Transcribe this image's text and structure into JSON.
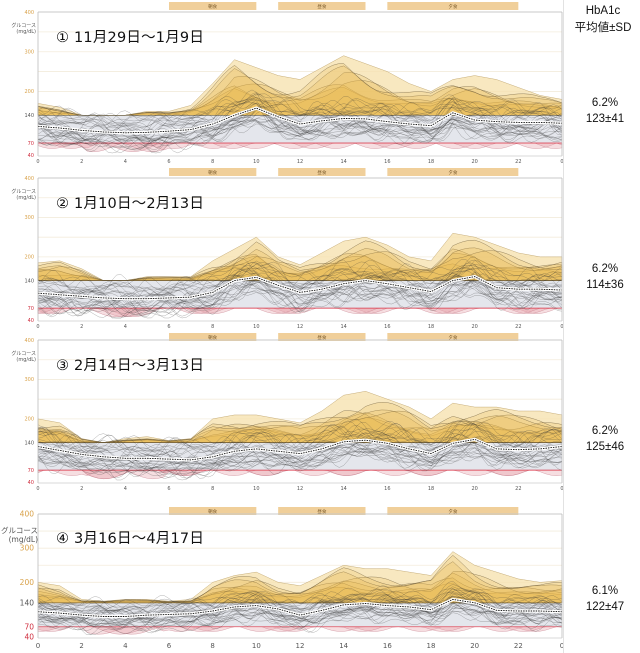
{
  "header": {
    "line1": "HbA1c",
    "line2": "平均値±SD"
  },
  "axis": {
    "ylabel_line1": "グルコース",
    "ylabel_line2": "(mg/dL)",
    "yticks": [
      40,
      70,
      140,
      200,
      300,
      400
    ],
    "xticks": [
      "0",
      "2",
      "4",
      "6",
      "8",
      "10",
      "12",
      "14",
      "16",
      "18",
      "20",
      "22",
      "0"
    ]
  },
  "meals": [
    {
      "label": "朝食",
      "start": 6,
      "end": 10
    },
    {
      "label": "昼食",
      "start": 11,
      "end": 15
    },
    {
      "label": "夕食",
      "start": 16,
      "end": 22
    }
  ],
  "colors": {
    "target_band": "#e4e6ec",
    "high_fill": "#e8b84a",
    "high_fill_light": "#f6e2b0",
    "low_fill": "#e6a0a8",
    "low_line": "#e05060",
    "meal_bar": "#f0cf9a",
    "trace": "#333333",
    "tick_high": "#d9a24a",
    "tick_low": "#d03040"
  },
  "panels": [
    {
      "title": "① 11月29日～1月9日",
      "hba1c": "6.2%",
      "mean_sd": "123±41"
    },
    {
      "title": "② 1月10日～2月13日",
      "hba1c": "6.2%",
      "mean_sd": "114±36"
    },
    {
      "title": "③ 2月14日～3月13日",
      "hba1c": "6.2%",
      "mean_sd": "125±46"
    },
    {
      "title": "④ 3月16日～4月17日",
      "hba1c": "6.1%",
      "mean_sd": "122±47"
    }
  ],
  "chart_data": [
    {
      "type": "line",
      "title": "① 11月29日～1月9日",
      "xlabel": "",
      "ylabel": "グルコース (mg/dL)",
      "xlim": [
        0,
        24
      ],
      "ylim": [
        40,
        400
      ],
      "target_range": [
        70,
        140
      ],
      "x": [
        0,
        1,
        2,
        3,
        4,
        5,
        6,
        7,
        8,
        9,
        10,
        11,
        12,
        13,
        14,
        15,
        16,
        17,
        18,
        19,
        20,
        21,
        22,
        23,
        24
      ],
      "series": [
        {
          "name": "median",
          "values": [
            112,
            108,
            102,
            98,
            96,
            97,
            100,
            104,
            118,
            140,
            158,
            136,
            118,
            126,
            132,
            131,
            124,
            118,
            114,
            146,
            128,
            124,
            122,
            122,
            120
          ]
        },
        {
          "name": "upper_envelope",
          "values": [
            170,
            160,
            140,
            130,
            140,
            150,
            150,
            165,
            220,
            280,
            260,
            240,
            230,
            260,
            290,
            270,
            250,
            220,
            200,
            230,
            240,
            230,
            210,
            190,
            180
          ]
        }
      ],
      "hba1c": "6.2%",
      "mean_sd": "123±41"
    },
    {
      "type": "line",
      "title": "② 1月10日～2月13日",
      "xlabel": "",
      "ylabel": "グルコース (mg/dL)",
      "xlim": [
        0,
        24
      ],
      "ylim": [
        40,
        400
      ],
      "target_range": [
        70,
        140
      ],
      "x": [
        0,
        1,
        2,
        3,
        4,
        5,
        6,
        7,
        8,
        9,
        10,
        11,
        12,
        13,
        14,
        15,
        16,
        17,
        18,
        19,
        20,
        21,
        22,
        23,
        24
      ],
      "series": [
        {
          "name": "median",
          "values": [
            108,
            104,
            100,
            96,
            94,
            94,
            96,
            98,
            110,
            140,
            148,
            128,
            110,
            118,
            132,
            140,
            132,
            122,
            112,
            140,
            150,
            122,
            118,
            118,
            116
          ]
        },
        {
          "name": "upper_envelope",
          "values": [
            185,
            190,
            170,
            140,
            140,
            150,
            150,
            150,
            190,
            220,
            250,
            200,
            180,
            210,
            240,
            250,
            230,
            200,
            190,
            260,
            250,
            230,
            210,
            200,
            200
          ]
        }
      ],
      "hba1c": "6.2%",
      "mean_sd": "114±36"
    },
    {
      "type": "line",
      "title": "③ 2月14日～3月13日",
      "xlabel": "",
      "ylabel": "グルコース (mg/dL)",
      "xlim": [
        0,
        24
      ],
      "ylim": [
        40,
        400
      ],
      "target_range": [
        70,
        140
      ],
      "x": [
        0,
        1,
        2,
        3,
        4,
        5,
        6,
        7,
        8,
        9,
        10,
        11,
        12,
        13,
        14,
        15,
        16,
        17,
        18,
        19,
        20,
        21,
        22,
        23,
        24
      ],
      "series": [
        {
          "name": "median",
          "values": [
            130,
            120,
            110,
            104,
            100,
            100,
            98,
            96,
            104,
            118,
            124,
            118,
            112,
            124,
            142,
            146,
            138,
            124,
            112,
            138,
            148,
            124,
            122,
            124,
            130
          ]
        },
        {
          "name": "upper_envelope",
          "values": [
            200,
            190,
            150,
            140,
            150,
            155,
            145,
            150,
            200,
            210,
            210,
            200,
            190,
            220,
            260,
            270,
            250,
            230,
            200,
            240,
            230,
            230,
            220,
            220,
            210
          ]
        }
      ],
      "hba1c": "6.2%",
      "mean_sd": "125±46"
    },
    {
      "type": "line",
      "title": "④ 3月16日～4月17日",
      "xlabel": "",
      "ylabel": "グルコース (mg/dL)",
      "xlim": [
        0,
        24
      ],
      "ylim": [
        40,
        400
      ],
      "target_range": [
        70,
        140
      ],
      "x": [
        0,
        1,
        2,
        3,
        4,
        5,
        6,
        7,
        8,
        9,
        10,
        11,
        12,
        13,
        14,
        15,
        16,
        17,
        18,
        19,
        20,
        21,
        22,
        23,
        24
      ],
      "series": [
        {
          "name": "median",
          "values": [
            114,
            110,
            104,
            100,
            100,
            104,
            106,
            108,
            116,
            128,
            132,
            122,
            104,
            118,
            134,
            138,
            132,
            128,
            120,
            150,
            140,
            118,
            116,
            116,
            114
          ]
        },
        {
          "name": "upper_envelope",
          "values": [
            200,
            190,
            150,
            145,
            150,
            150,
            145,
            150,
            200,
            220,
            230,
            200,
            190,
            220,
            250,
            240,
            240,
            230,
            220,
            290,
            250,
            230,
            210,
            200,
            205
          ]
        }
      ],
      "hba1c": "6.1%",
      "mean_sd": "122±47"
    }
  ]
}
